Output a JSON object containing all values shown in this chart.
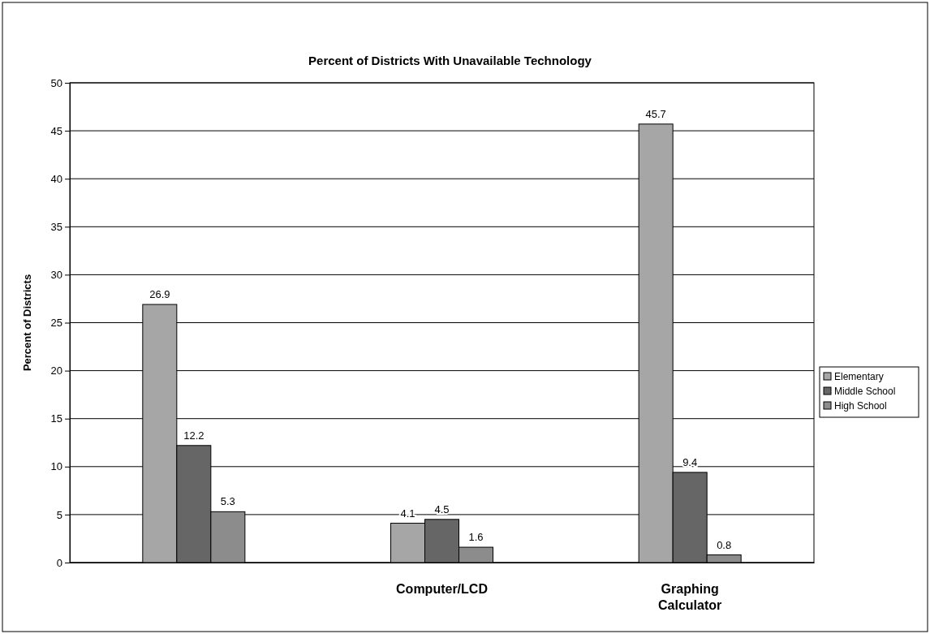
{
  "chart_data": {
    "type": "bar",
    "title": "Percent of Districts With Unavailable Technology",
    "ylabel": "Percent of Districts",
    "categories": [
      null,
      "Computer/LCD",
      "Graphing Calculator"
    ],
    "series": [
      {
        "name": "Elementary",
        "color": "#a6a6a6",
        "values": [
          26.9,
          4.1,
          45.7
        ]
      },
      {
        "name": "Middle School",
        "color": "#666666",
        "values": [
          12.2,
          4.5,
          9.4
        ]
      },
      {
        "name": "High School",
        "color": "#8c8c8c",
        "values": [
          5.3,
          1.6,
          0.8
        ]
      }
    ],
    "ylim": [
      0,
      50
    ],
    "yticks": [
      0,
      5,
      10,
      15,
      20,
      25,
      30,
      35,
      40,
      45,
      50
    ],
    "grid": "y",
    "legend": "right",
    "data_labels": true
  }
}
